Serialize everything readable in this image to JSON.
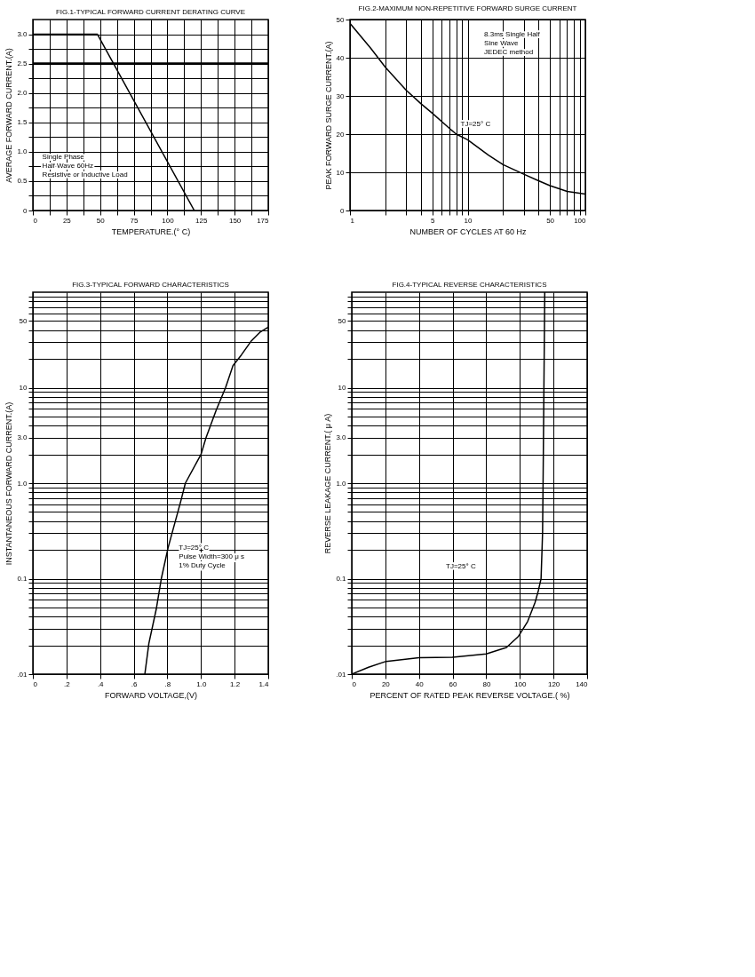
{
  "chart_data": [
    {
      "type": "line",
      "title": "FIG.1-TYPICAL FORWARD CURRENT DERATING CURVE",
      "xlabel": "TEMPERATURE.(° C)",
      "ylabel": "AVERAGE FORWARD CURRENT.(A)",
      "x": [
        0,
        48,
        120
      ],
      "series": [
        {
          "color": "#000000",
          "values": [
            3.0,
            3.0,
            0
          ]
        }
      ],
      "xlim": [
        0,
        175
      ],
      "xticks": [
        0,
        {
          "value": 12.5,
          "label": null
        },
        25,
        {
          "value": 37.5,
          "label": null
        },
        50,
        {
          "value": 62.5,
          "label": null
        },
        75,
        {
          "value": 87.5,
          "label": null
        },
        100,
        {
          "value": 112.5,
          "label": null
        },
        125,
        {
          "value": 137.5,
          "label": null
        },
        150,
        {
          "value": 162.5,
          "label": null
        },
        175
      ],
      "ylim": [
        0,
        3.25
      ],
      "yticks": [
        0,
        {
          "value": 0.25,
          "label": null
        },
        0.5,
        {
          "value": 0.75,
          "label": null
        },
        {
          "value": 1.0,
          "label": "1.0"
        },
        {
          "value": 1.25,
          "label": null
        },
        1.5,
        {
          "value": 1.75,
          "label": null
        },
        {
          "value": 2.0,
          "label": "2.0"
        },
        {
          "value": 2.25,
          "label": null
        },
        2.5,
        {
          "value": 2.75,
          "label": null
        },
        {
          "value": 3.0,
          "label": "3.0"
        }
      ],
      "grid": true,
      "ref_lines": [
        {
          "axis": "y",
          "value": 2.5
        }
      ],
      "annotations": [
        "Single Phase\nHalf Wave 60Hz\nResistive or Inductive Load"
      ]
    },
    {
      "type": "line",
      "title": "FIG.2-MAXIMUM NON-REPETITIVE FORWARD SURGE CURRENT",
      "xlabel": "NUMBER  OF  CYCLES  AT  60  Hz",
      "ylabel": "PEAK FORWARD SURGE CURRENT.(A)",
      "x": [
        1,
        1.5,
        2,
        3,
        4,
        5,
        7,
        8,
        10,
        15,
        20,
        30,
        40,
        50,
        70,
        100
      ],
      "series": [
        {
          "color": "#000000",
          "values": [
            49,
            42.5,
            37.5,
            31.5,
            28,
            25.5,
            21.5,
            20,
            18.5,
            14.5,
            12,
            9.5,
            7.8,
            6.5,
            5,
            4.3
          ]
        }
      ],
      "xlim": [
        1,
        100
      ],
      "xticks": [
        1,
        {
          "value": 2,
          "label": null
        },
        {
          "value": 3,
          "label": null
        },
        {
          "value": 4,
          "label": null
        },
        5,
        {
          "value": 6,
          "label": null
        },
        {
          "value": 7,
          "label": null
        },
        {
          "value": 8,
          "label": null
        },
        {
          "value": 9,
          "label": null
        },
        10,
        {
          "value": 20,
          "label": null
        },
        {
          "value": 30,
          "label": null
        },
        {
          "value": 40,
          "label": null
        },
        50,
        {
          "value": 60,
          "label": null
        },
        {
          "value": 70,
          "label": null
        },
        {
          "value": 80,
          "label": null
        },
        {
          "value": 90,
          "label": null
        },
        100
      ],
      "ylim": [
        0,
        50
      ],
      "yticks": [
        0,
        10,
        20,
        30,
        40,
        50
      ],
      "grid": true,
      "log": "x",
      "annotations": [
        "8.3ms Single Half\nSine Wave\nJEDEC method",
        "TJ=25° C"
      ]
    },
    {
      "type": "line",
      "title": "FIG.3-TYPICAL FORWARD CHARACTERISTICS",
      "xlabel": "FORWARD VOLTAGE,(V)",
      "ylabel": "INSTANTANEOUS FORWARD CURRENT.(A)",
      "x": [
        0.666,
        0.69,
        0.734,
        0.764,
        0.804,
        0.88,
        0.907,
        1.0,
        1.03,
        1.09,
        1.146,
        1.19,
        1.24,
        1.3,
        1.35,
        1.4
      ],
      "series": [
        {
          "color": "#000000",
          "values": [
            0.01,
            0.021,
            0.048,
            0.1,
            0.21,
            0.65,
            1.0,
            2.0,
            3.0,
            5.8,
            10,
            17,
            22,
            31,
            38,
            43
          ]
        }
      ],
      "xlim": [
        0,
        1.4
      ],
      "xticks": [
        0,
        {
          "value": 0.2,
          "label": ".2"
        },
        {
          "value": 0.4,
          "label": ".4"
        },
        {
          "value": 0.6,
          "label": ".6"
        },
        {
          "value": 0.8,
          "label": ".8"
        },
        {
          "value": 1.0,
          "label": "1.0"
        },
        1.2,
        1.4
      ],
      "ylim": [
        0.01,
        100
      ],
      "yticks": [
        {
          "value": 0.01,
          "label": ".01"
        },
        {
          "value": 0.02,
          "label": null
        },
        {
          "value": 0.03,
          "label": null
        },
        {
          "value": 0.04,
          "label": null
        },
        {
          "value": 0.05,
          "label": null
        },
        {
          "value": 0.06,
          "label": null
        },
        {
          "value": 0.07,
          "label": null
        },
        {
          "value": 0.08,
          "label": null
        },
        {
          "value": 0.09,
          "label": null
        },
        0.1,
        {
          "value": 0.2,
          "label": null
        },
        {
          "value": 0.3,
          "label": null
        },
        {
          "value": 0.4,
          "label": null
        },
        {
          "value": 0.5,
          "label": null
        },
        {
          "value": 0.6,
          "label": null
        },
        {
          "value": 0.7,
          "label": null
        },
        {
          "value": 0.8,
          "label": null
        },
        {
          "value": 0.9,
          "label": null
        },
        {
          "value": 1,
          "label": "1.0"
        },
        {
          "value": 2,
          "label": null
        },
        {
          "value": 3,
          "label": "3.0"
        },
        {
          "value": 4,
          "label": null
        },
        {
          "value": 5,
          "label": null
        },
        {
          "value": 6,
          "label": null
        },
        {
          "value": 7,
          "label": null
        },
        {
          "value": 8,
          "label": null
        },
        {
          "value": 9,
          "label": null
        },
        10,
        {
          "value": 20,
          "label": null
        },
        {
          "value": 30,
          "label": null
        },
        {
          "value": 40,
          "label": null
        },
        50,
        {
          "value": 60,
          "label": null
        },
        {
          "value": 70,
          "label": null
        },
        {
          "value": 80,
          "label": null
        },
        {
          "value": 90,
          "label": null
        }
      ],
      "grid": true,
      "log": true,
      "annotations": [
        "TJ=25° C\nPulse Width=300 μ s\n1% Duty Cycle"
      ]
    },
    {
      "type": "line",
      "title": "FIG.4-TYPICAL REVERSE CHARACTERISTICS",
      "xlabel": "PERCENT OF RATED PEAK REVERSE VOLTAGE.( %)",
      "ylabel": "REVERSE LEAKAGE CURRENT.( μ A)",
      "x": [
        0,
        10,
        20.4,
        40,
        60,
        80,
        92,
        99,
        104.6,
        109,
        111,
        112.6,
        113.5,
        113.8,
        114.3,
        114.8
      ],
      "series": [
        {
          "color": "#000000",
          "values": [
            0.01,
            0.0118,
            0.0136,
            0.0149,
            0.015,
            0.0163,
            0.019,
            0.0247,
            0.0355,
            0.056,
            0.075,
            0.1,
            0.3,
            1,
            10,
            100
          ]
        }
      ],
      "xlim": [
        0,
        140
      ],
      "xticks": [
        0,
        20,
        40,
        60,
        80,
        100,
        120,
        140
      ],
      "ylim": [
        0.01,
        100
      ],
      "yticks": [
        {
          "value": 0.01,
          "label": ".01"
        },
        {
          "value": 0.02,
          "label": null
        },
        {
          "value": 0.03,
          "label": null
        },
        {
          "value": 0.04,
          "label": null
        },
        {
          "value": 0.05,
          "label": null
        },
        {
          "value": 0.06,
          "label": null
        },
        {
          "value": 0.07,
          "label": null
        },
        {
          "value": 0.08,
          "label": null
        },
        {
          "value": 0.09,
          "label": null
        },
        0.1,
        {
          "value": 0.2,
          "label": null
        },
        {
          "value": 0.3,
          "label": null
        },
        {
          "value": 0.4,
          "label": null
        },
        {
          "value": 0.5,
          "label": null
        },
        {
          "value": 0.6,
          "label": null
        },
        {
          "value": 0.7,
          "label": null
        },
        {
          "value": 0.8,
          "label": null
        },
        {
          "value": 0.9,
          "label": null
        },
        {
          "value": 1,
          "label": "1.0"
        },
        {
          "value": 2,
          "label": null
        },
        {
          "value": 3,
          "label": "3.0"
        },
        {
          "value": 4,
          "label": null
        },
        {
          "value": 5,
          "label": null
        },
        {
          "value": 6,
          "label": null
        },
        {
          "value": 7,
          "label": null
        },
        {
          "value": 8,
          "label": null
        },
        {
          "value": 9,
          "label": null
        },
        10,
        {
          "value": 20,
          "label": null
        },
        {
          "value": 30,
          "label": null
        },
        {
          "value": 40,
          "label": null
        },
        50,
        {
          "value": 60,
          "label": null
        },
        {
          "value": 70,
          "label": null
        },
        {
          "value": 80,
          "label": null
        },
        {
          "value": 90,
          "label": null
        }
      ],
      "grid": true,
      "log": true,
      "annotations": [
        "TJ=25° C"
      ]
    }
  ]
}
